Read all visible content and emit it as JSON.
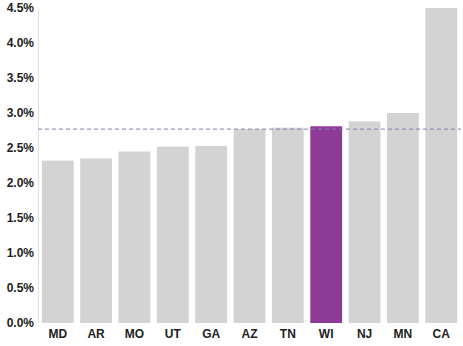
{
  "chart_data": {
    "type": "bar",
    "categories": [
      "MD",
      "AR",
      "MO",
      "UT",
      "GA",
      "AZ",
      "TN",
      "WI",
      "NJ",
      "MN",
      "CA"
    ],
    "values": [
      2.32,
      2.35,
      2.45,
      2.52,
      2.53,
      2.77,
      2.79,
      2.81,
      2.88,
      3.0,
      4.5
    ],
    "colors": [
      "#d3d3d3",
      "#d3d3d3",
      "#d3d3d3",
      "#d3d3d3",
      "#d3d3d3",
      "#d3d3d3",
      "#d3d3d3",
      "#8e3a97",
      "#d3d3d3",
      "#d3d3d3",
      "#d3d3d3"
    ],
    "ylim": [
      0,
      4.5
    ],
    "yticks": [
      {
        "value": 0,
        "label": "0.0%"
      },
      {
        "value": 0.5,
        "label": "0.5%"
      },
      {
        "value": 1,
        "label": "1.0%"
      },
      {
        "value": 1.5,
        "label": "1.5%"
      },
      {
        "value": 2,
        "label": "2.0%"
      },
      {
        "value": 2.5,
        "label": "2.5%"
      },
      {
        "value": 3,
        "label": "3.0%"
      },
      {
        "value": 3.5,
        "label": "3.5%"
      },
      {
        "value": 4,
        "label": "4.0%"
      },
      {
        "value": 4.5,
        "label": "4.5%"
      }
    ],
    "grid": false,
    "reference_line": {
      "value": 2.77,
      "line_style": "dashed",
      "color": "#7c82b0"
    }
  }
}
